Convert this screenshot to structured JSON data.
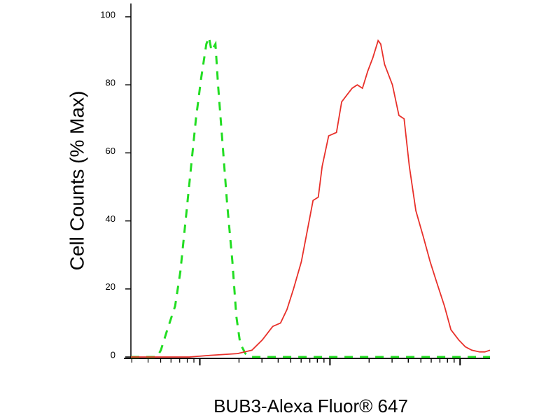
{
  "chart_data": {
    "type": "line",
    "ylabel": "Cell Counts (% Max)",
    "xlabel": "BUB3-Alexa Fluor® 647",
    "xlim": [
      0,
      2.76
    ],
    "xticks": [
      0.53,
      1.53,
      2.53
    ],
    "ylim": [
      0,
      100
    ],
    "yticks": [
      0,
      20,
      40,
      60,
      80,
      100
    ],
    "series": [
      {
        "color": "#22dd22",
        "dashed": true,
        "x": [
          0,
          0.2,
          0.23,
          0.28,
          0.34,
          0.38,
          0.42,
          0.46,
          0.5,
          0.54,
          0.58,
          0.6,
          0.62,
          0.65,
          0.67,
          0.7,
          0.74,
          0.78,
          0.81,
          0.84,
          0.88,
          0.91,
          2.76
        ],
        "values": [
          0,
          0,
          2,
          8,
          15,
          25,
          40,
          55,
          70,
          82,
          92,
          94,
          90,
          92,
          80,
          65,
          45,
          28,
          12,
          4,
          1,
          0,
          0
        ]
      },
      {
        "color": "#e8302a",
        "dashed": false,
        "x": [
          0,
          0.45,
          0.61,
          0.82,
          0.93,
          1.01,
          1.09,
          1.15,
          1.2,
          1.25,
          1.31,
          1.36,
          1.4,
          1.44,
          1.47,
          1.52,
          1.58,
          1.62,
          1.66,
          1.7,
          1.74,
          1.78,
          1.82,
          1.86,
          1.9,
          1.92,
          1.95,
          2.01,
          2.06,
          2.1,
          2.14,
          2.19,
          2.25,
          2.3,
          2.35,
          2.41,
          2.46,
          2.52,
          2.57,
          2.62,
          2.68,
          2.72,
          2.76
        ],
        "values": [
          0,
          0,
          0.5,
          1,
          2,
          5,
          9,
          10,
          14,
          20,
          28,
          38,
          46,
          47,
          56,
          65,
          66,
          75,
          77,
          79,
          80,
          79,
          84,
          88,
          93,
          92,
          86,
          80,
          71,
          70,
          56,
          43,
          35,
          28,
          22,
          15,
          8,
          5,
          3,
          2,
          1.5,
          1.5,
          2
        ]
      }
    ]
  }
}
